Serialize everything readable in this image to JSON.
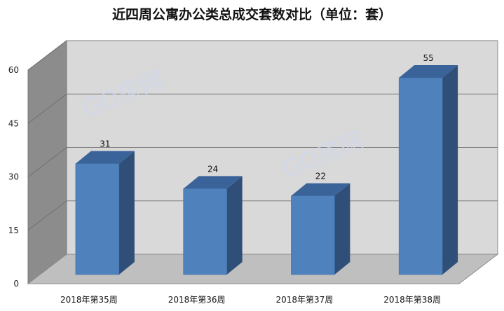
{
  "chart_data": {
    "type": "bar",
    "title": "近四周公寓办公类总成交套数对比（单位：套）",
    "categories": [
      "2018年第35周",
      "2018年第36周",
      "2018年第37周",
      "2018年第38周"
    ],
    "values": [
      31,
      24,
      22,
      55
    ],
    "ylim": [
      0,
      60
    ],
    "yticks": [
      0,
      15,
      30,
      45,
      60
    ],
    "grid": true,
    "legend": "none",
    "style": "3d-column",
    "colors": {
      "bar_front": "#4f81bd",
      "bar_side": "#2f4e78",
      "bar_top": "#3a639a",
      "wall": "#d9d9d9",
      "floor": "#bfbfbf"
    }
  },
  "watermark": "GO房网"
}
